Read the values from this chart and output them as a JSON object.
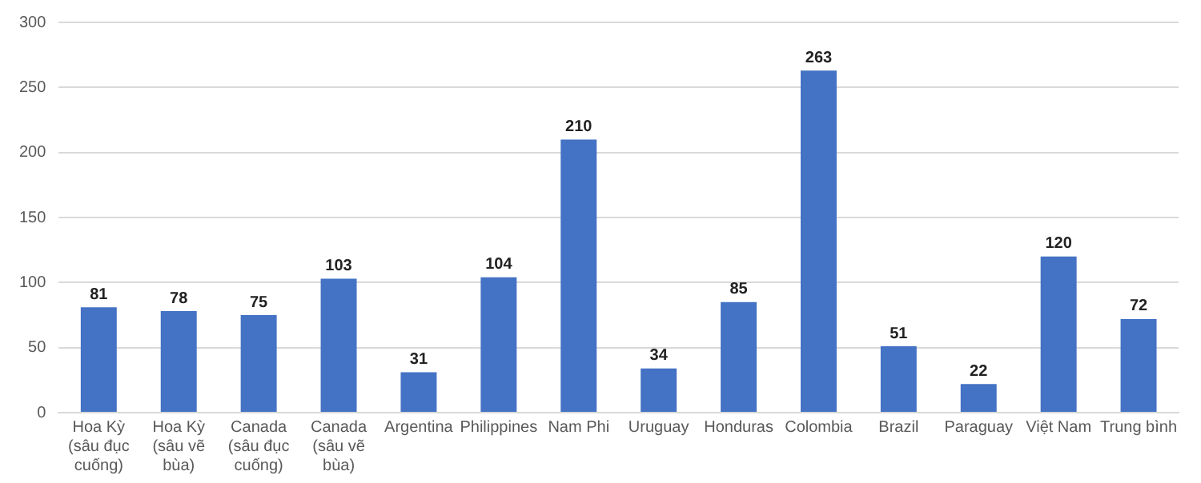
{
  "chart_data": {
    "type": "bar",
    "categories": [
      "Hoa Kỳ (sâu đục cuống)",
      "Hoa Kỳ (sâu vẽ bùa)",
      "Canada (sâu đục cuống)",
      "Canada (sâu vẽ bùa)",
      "Argentina",
      "Philippines",
      "Nam Phi",
      "Uruguay",
      "Honduras",
      "Colombia",
      "Brazil",
      "Paraguay",
      "Việt Nam",
      "Trung bình"
    ],
    "values": [
      81,
      78,
      75,
      103,
      31,
      104,
      210,
      34,
      85,
      263,
      51,
      22,
      120,
      72
    ],
    "color": "#4472c4",
    "ylim": [
      0,
      300
    ],
    "yticks": [
      0,
      50,
      100,
      150,
      200,
      250,
      300
    ],
    "grid": "y",
    "data_labels": true
  }
}
